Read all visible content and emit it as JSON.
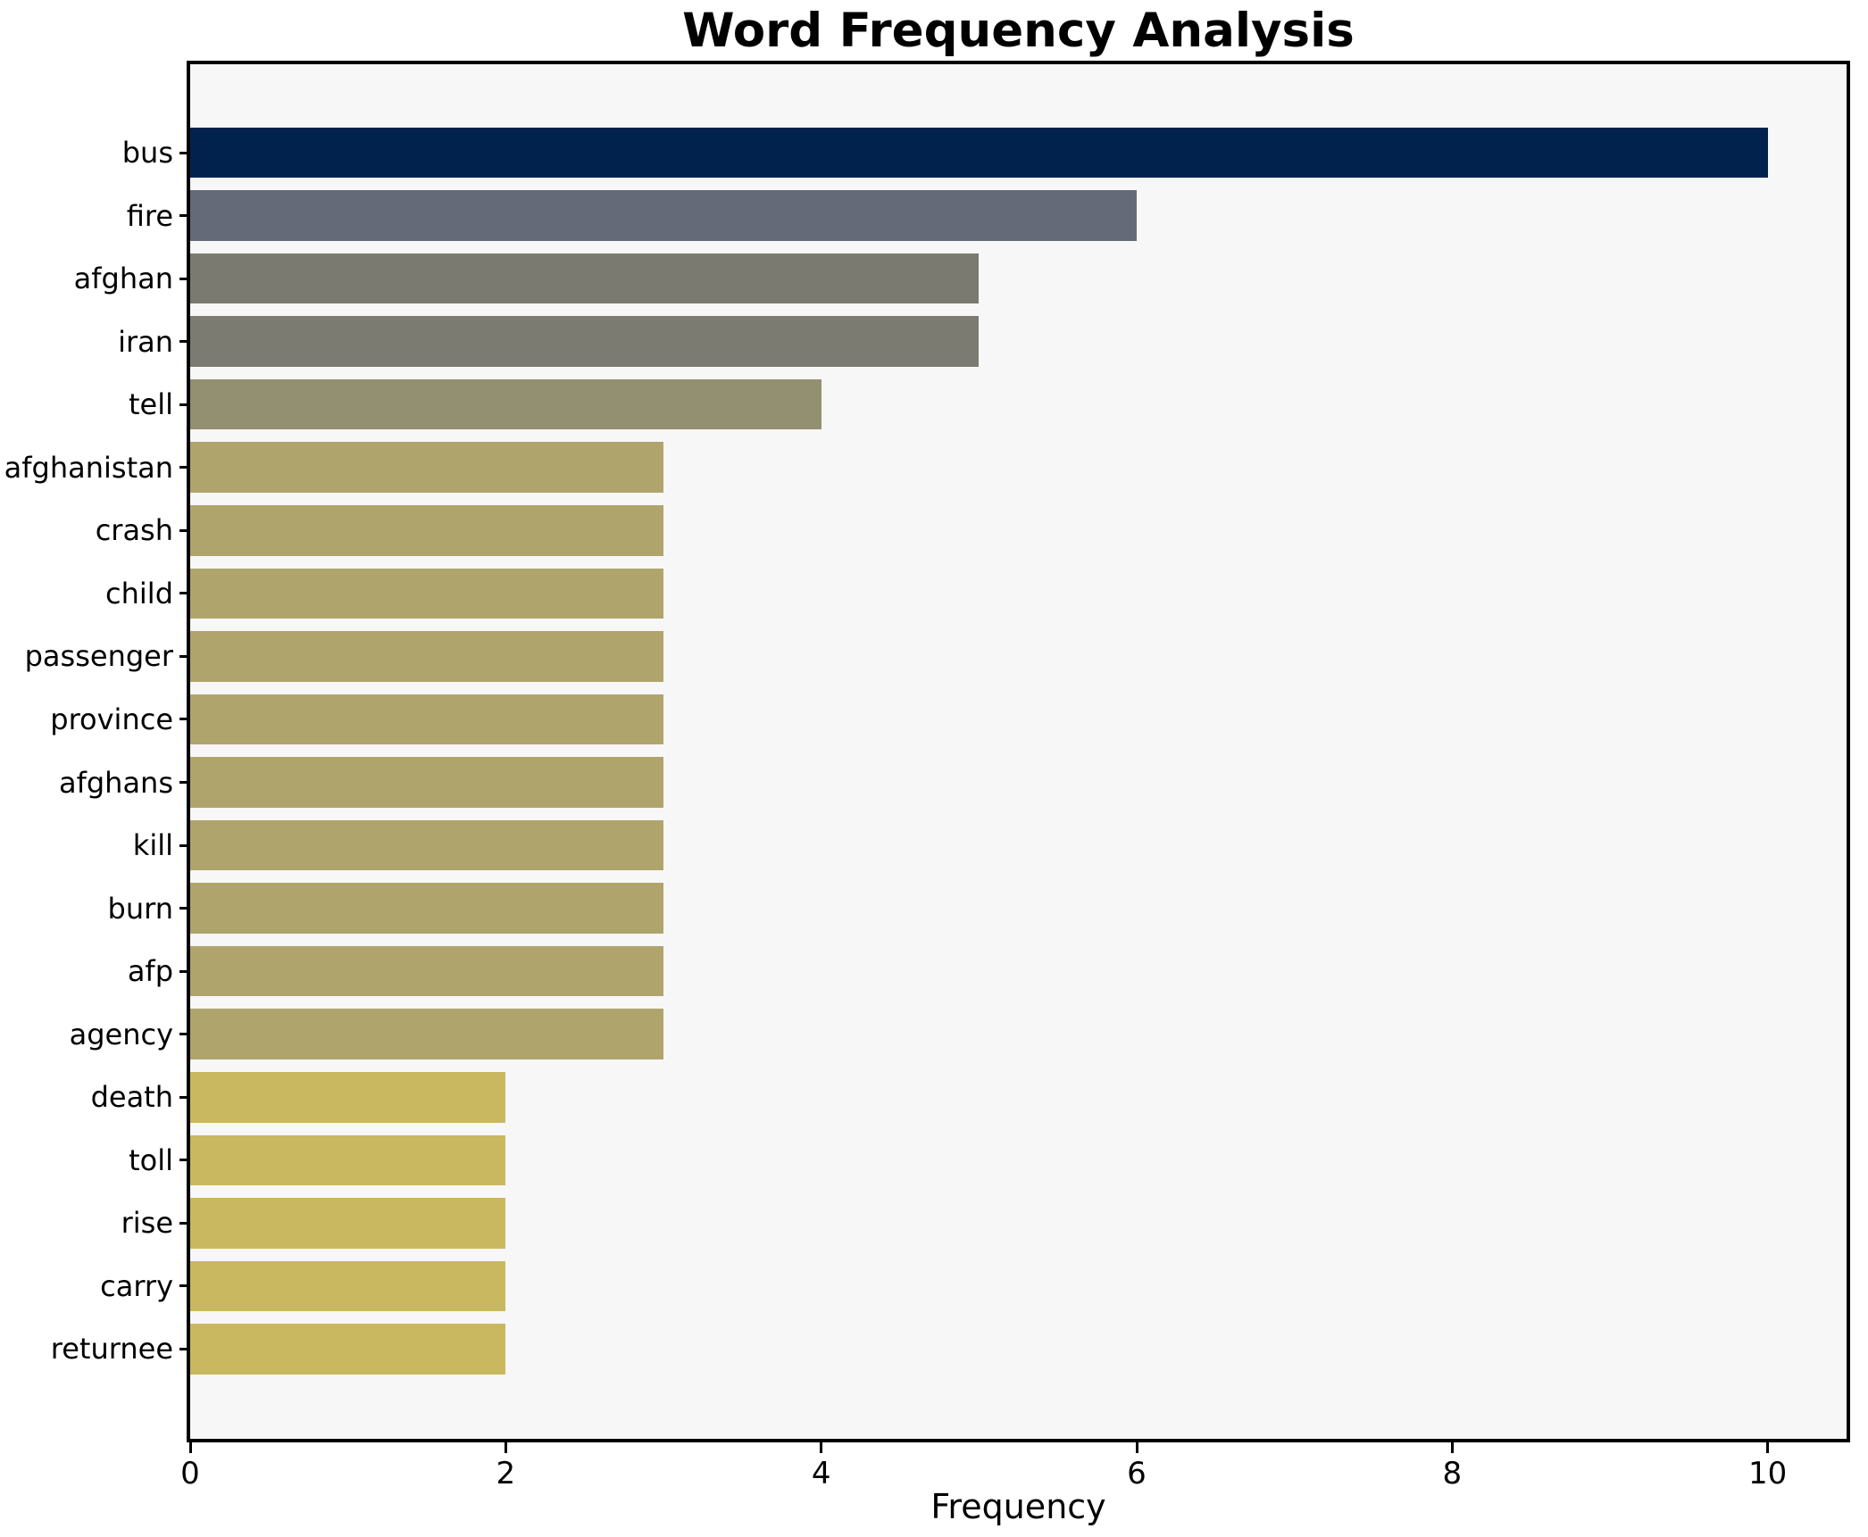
{
  "chart_data": {
    "type": "bar",
    "orientation": "horizontal",
    "title": "Word Frequency Analysis",
    "xlabel": "Frequency",
    "ylabel": "",
    "categories": [
      "bus",
      "fire",
      "afghan",
      "iran",
      "tell",
      "afghanistan",
      "crash",
      "child",
      "passenger",
      "province",
      "afghans",
      "kill",
      "burn",
      "afp",
      "agency",
      "death",
      "toll",
      "rise",
      "carry",
      "returnee"
    ],
    "values": [
      10,
      6,
      5,
      5,
      4,
      3,
      3,
      3,
      3,
      3,
      3,
      3,
      3,
      3,
      3,
      2,
      2,
      2,
      2,
      2
    ],
    "bar_colors": [
      "#02224e",
      "#646a78",
      "#7b7a70",
      "#7c7b72",
      "#939071",
      "#b0a46d",
      "#b0a46d",
      "#b0a46d",
      "#b0a46d",
      "#b0a46d",
      "#b0a46d",
      "#b0a46d",
      "#b0a46d",
      "#b0a46d",
      "#b0a46d",
      "#cab861",
      "#cab861",
      "#cab861",
      "#cab861",
      "#cab861"
    ],
    "xlim": [
      0,
      10.5
    ],
    "x_ticks": [
      0,
      2,
      4,
      6,
      8,
      10
    ],
    "x_tick_labels": [
      "0",
      "2",
      "4",
      "6",
      "8",
      "10"
    ],
    "grid": false,
    "legend": null,
    "plot_background": "#f7f7f8",
    "figure_background": "#ffffff",
    "spine_color": "#000000",
    "text_color": "#000000"
  }
}
